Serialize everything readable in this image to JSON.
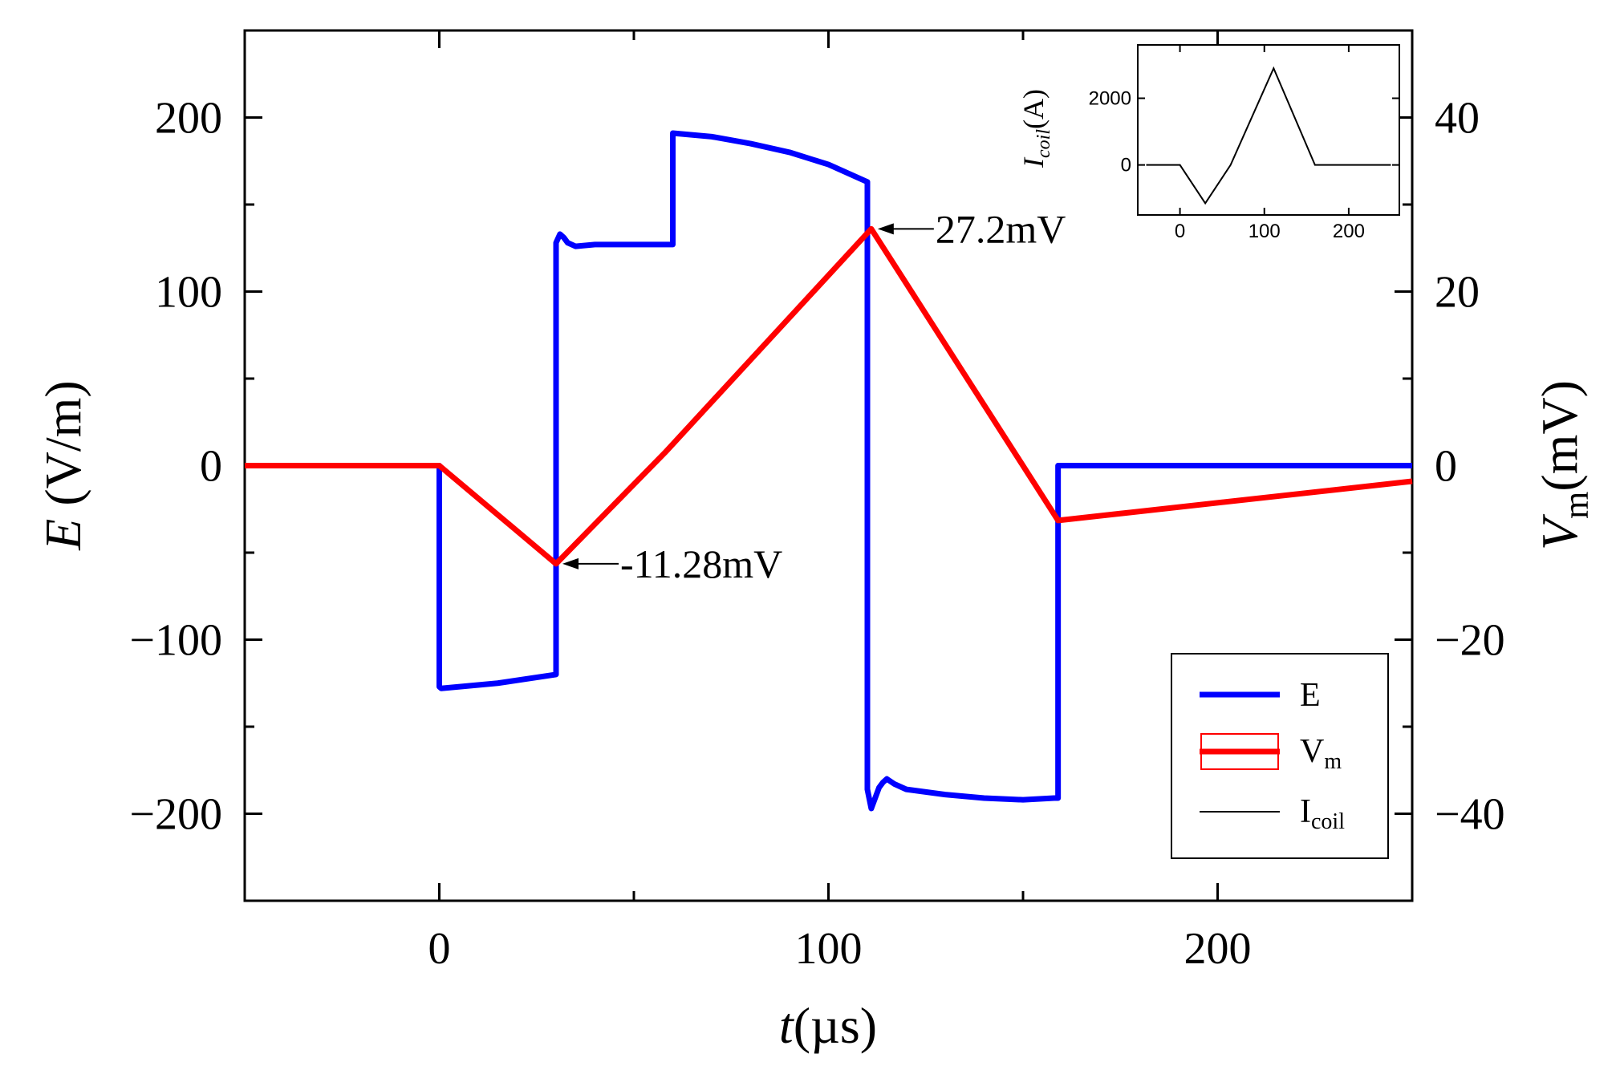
{
  "chart_data": {
    "type": "line",
    "title": "",
    "xlabel": {
      "italic": "t",
      "normal": "(µs)"
    },
    "ylabel_left": {
      "italic": "E",
      "normal": " (V/m)"
    },
    "ylabel_right": {
      "italic": "V",
      "sub": "m",
      "normal": "(mV)"
    },
    "xlim": [
      -50,
      250
    ],
    "ylim_left": [
      -250,
      250
    ],
    "ylim_right": [
      -50,
      50
    ],
    "x_ticks": [
      0,
      100,
      200
    ],
    "x_tick_labels": [
      "0",
      "100",
      "200"
    ],
    "y_left_ticks": [
      -200,
      -100,
      0,
      100,
      200
    ],
    "y_left_tick_labels": [
      "−200",
      "−100",
      "0",
      "100",
      "200"
    ],
    "y_right_ticks": [
      -40,
      -20,
      0,
      20,
      40
    ],
    "y_right_tick_labels": [
      "−40",
      "−20",
      "0",
      "20",
      "40"
    ],
    "series": [
      {
        "name": "E",
        "axis": "left",
        "color": "#0000ff",
        "points": [
          [
            -50,
            0
          ],
          [
            0,
            0
          ],
          [
            0,
            -127
          ],
          [
            0.5,
            -128
          ],
          [
            15,
            -125
          ],
          [
            30,
            -120
          ],
          [
            30,
            128
          ],
          [
            31,
            133
          ],
          [
            32,
            131
          ],
          [
            33,
            128
          ],
          [
            35,
            126
          ],
          [
            40,
            127
          ],
          [
            55,
            127
          ],
          [
            60,
            127
          ],
          [
            60,
            191
          ],
          [
            70,
            189
          ],
          [
            80,
            185
          ],
          [
            90,
            180
          ],
          [
            100,
            173
          ],
          [
            110,
            163
          ],
          [
            110,
            -186
          ],
          [
            111,
            -197
          ],
          [
            112,
            -191
          ],
          [
            113,
            -185
          ],
          [
            114,
            -182
          ],
          [
            115,
            -180
          ],
          [
            117,
            -183
          ],
          [
            120,
            -186
          ],
          [
            130,
            -189
          ],
          [
            140,
            -191
          ],
          [
            150,
            -192
          ],
          [
            158,
            -191
          ],
          [
            159,
            -191
          ],
          [
            159,
            0
          ],
          [
            250,
            0
          ]
        ]
      },
      {
        "name": "V_m",
        "axis": "right",
        "color": "#ff0000",
        "points": [
          [
            -50,
            0
          ],
          [
            0,
            0
          ],
          [
            30,
            -11.28
          ],
          [
            58,
            1.5
          ],
          [
            111,
            27.2
          ],
          [
            159,
            -6.3
          ],
          [
            250,
            -1.8
          ]
        ]
      }
    ],
    "legend": {
      "position": "bottom-right",
      "entries": [
        {
          "label": "E",
          "sub": "",
          "color": "#0000ff",
          "style": "thick"
        },
        {
          "label": "V",
          "sub": "m",
          "color": "#ff0000",
          "style": "thick-box"
        },
        {
          "label": "I",
          "sub": "coil",
          "color": "#000000",
          "style": "thin"
        }
      ]
    },
    "annotations": [
      {
        "text": "-11.28mV",
        "x": 30,
        "y": -11.28,
        "axis": "right",
        "side": "right"
      },
      {
        "text": "27.2mV",
        "x": 111,
        "y": 27.2,
        "axis": "right",
        "side": "right"
      }
    ],
    "inset": {
      "ylabel": {
        "italic": "I",
        "sub": "coil",
        "normal": "(A)"
      },
      "xlim": [
        -50,
        260
      ],
      "ylim": [
        -1500,
        3600
      ],
      "x_ticks": [
        0,
        100,
        200
      ],
      "x_tick_labels": [
        "0",
        "100",
        "200"
      ],
      "y_ticks": [
        0,
        2000
      ],
      "y_tick_labels": [
        "0",
        "2000"
      ],
      "series": [
        {
          "name": "I_coil",
          "color": "#000000",
          "points": [
            [
              -40,
              0
            ],
            [
              0,
              0
            ],
            [
              30,
              -1150
            ],
            [
              60,
              0
            ],
            [
              111,
              2900
            ],
            [
              160,
              0
            ],
            [
              250,
              0
            ]
          ]
        }
      ]
    }
  }
}
